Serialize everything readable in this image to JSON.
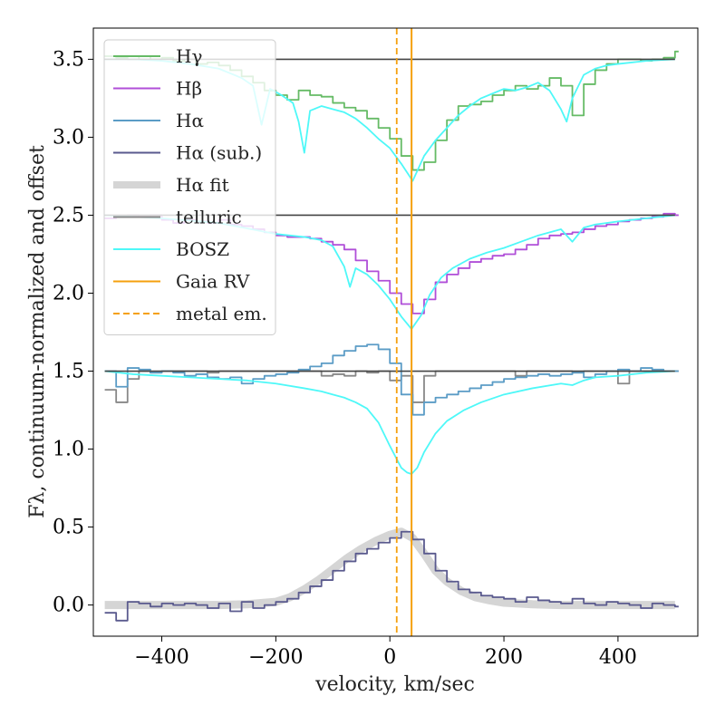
{
  "chart_data": {
    "type": "line",
    "xlabel": "velocity, km/sec",
    "ylabel": "Fλ, continuum-normalized and offset",
    "xlim": [
      -520,
      540
    ],
    "ylim": [
      -0.2,
      3.7
    ],
    "xticks": [
      -400,
      -200,
      0,
      200,
      400
    ],
    "xtick_labels": [
      "−400",
      "−200",
      "0",
      "200",
      "400"
    ],
    "yticks": [
      0.0,
      0.5,
      1.0,
      1.5,
      2.0,
      2.5,
      3.0,
      3.5
    ],
    "ytick_labels": [
      "0.0",
      "0.5",
      "1.0",
      "1.5",
      "2.0",
      "2.5",
      "3.0",
      "3.5"
    ],
    "legend_position": "upper-left",
    "colors": {
      "hgamma": "#66bb66",
      "hbeta": "#b04fd8",
      "halpha": "#5b9cc6",
      "halpha_sub": "#5a5a8e",
      "halpha_fit": "#d5d5d5",
      "telluric": "#888888",
      "bosz": "#4ef8f8",
      "gaia": "#f5a00e",
      "refline": "#444444"
    },
    "legend": [
      {
        "key": "hgamma",
        "label": "Hγ",
        "style": "line"
      },
      {
        "key": "hbeta",
        "label": "Hβ",
        "style": "line"
      },
      {
        "key": "halpha",
        "label": "Hα",
        "style": "line"
      },
      {
        "key": "halpha_sub",
        "label": "Hα (sub.)",
        "style": "line"
      },
      {
        "key": "halpha_fit",
        "label": "Hα fit",
        "style": "thick"
      },
      {
        "key": "telluric",
        "label": "telluric",
        "style": "line"
      },
      {
        "key": "bosz",
        "label": "BOSZ",
        "style": "line"
      },
      {
        "key": "gaia",
        "label": "Gaia RV",
        "style": "line"
      },
      {
        "key": "gaia",
        "label": "metal em.",
        "style": "dashed"
      }
    ],
    "reference_lines": {
      "horizontal_y": [
        3.5,
        2.5,
        1.5
      ],
      "gaia_rv": 38,
      "metal_emission": 12
    },
    "series": [
      {
        "name": "Hγ",
        "key": "hgamma",
        "offset": 3.0,
        "style": "step",
        "x": [
          -500,
          -480,
          -460,
          -440,
          -420,
          -400,
          -380,
          -360,
          -340,
          -320,
          -300,
          -280,
          -260,
          -240,
          -220,
          -200,
          -180,
          -160,
          -140,
          -120,
          -100,
          -80,
          -60,
          -40,
          -20,
          0,
          20,
          40,
          60,
          80,
          100,
          120,
          140,
          160,
          180,
          200,
          220,
          240,
          260,
          280,
          300,
          320,
          340,
          360,
          380,
          400,
          420,
          440,
          460,
          480,
          500
        ],
        "y": [
          3.52,
          3.51,
          3.5,
          3.52,
          3.5,
          3.51,
          3.49,
          3.5,
          3.47,
          3.48,
          3.46,
          3.43,
          3.39,
          3.35,
          3.3,
          3.27,
          3.24,
          3.3,
          3.27,
          3.26,
          3.22,
          3.19,
          3.17,
          3.12,
          3.06,
          2.99,
          2.88,
          2.79,
          2.84,
          2.98,
          3.11,
          3.2,
          3.21,
          3.23,
          3.27,
          3.3,
          3.33,
          3.31,
          3.33,
          3.38,
          3.33,
          3.14,
          3.34,
          3.43,
          3.47,
          3.5,
          3.5,
          3.49,
          3.5,
          3.51,
          3.55
        ]
      },
      {
        "name": "Hβ",
        "key": "hbeta",
        "offset": 2.0,
        "style": "step",
        "x": [
          -500,
          -480,
          -460,
          -440,
          -420,
          -400,
          -380,
          -360,
          -340,
          -320,
          -300,
          -280,
          -260,
          -240,
          -220,
          -200,
          -180,
          -160,
          -140,
          -120,
          -100,
          -80,
          -60,
          -40,
          -20,
          0,
          20,
          40,
          60,
          80,
          100,
          120,
          140,
          160,
          180,
          200,
          220,
          240,
          260,
          280,
          300,
          320,
          340,
          360,
          380,
          400,
          420,
          440,
          460,
          480,
          500
        ],
        "y": [
          2.48,
          2.49,
          2.5,
          2.49,
          2.5,
          2.47,
          2.45,
          2.47,
          2.46,
          2.45,
          2.47,
          2.44,
          2.43,
          2.41,
          2.39,
          2.37,
          2.36,
          2.36,
          2.35,
          2.33,
          2.31,
          2.28,
          2.21,
          2.14,
          2.08,
          2.0,
          1.93,
          1.87,
          1.96,
          2.07,
          2.12,
          2.16,
          2.2,
          2.22,
          2.24,
          2.25,
          2.28,
          2.31,
          2.35,
          2.37,
          2.38,
          2.39,
          2.41,
          2.43,
          2.44,
          2.46,
          2.47,
          2.48,
          2.49,
          2.51,
          2.5
        ]
      },
      {
        "name": "Hα",
        "key": "halpha",
        "offset": 1.0,
        "style": "step",
        "x": [
          -500,
          -480,
          -460,
          -440,
          -420,
          -400,
          -380,
          -360,
          -340,
          -320,
          -300,
          -280,
          -260,
          -240,
          -220,
          -200,
          -180,
          -160,
          -140,
          -120,
          -100,
          -80,
          -60,
          -40,
          -20,
          0,
          20,
          40,
          60,
          80,
          100,
          120,
          140,
          160,
          180,
          200,
          220,
          240,
          260,
          280,
          300,
          320,
          340,
          360,
          380,
          400,
          420,
          440,
          460,
          480,
          500
        ],
        "y": [
          1.5,
          1.4,
          1.52,
          1.51,
          1.49,
          1.5,
          1.49,
          1.47,
          1.48,
          1.46,
          1.45,
          1.46,
          1.42,
          1.45,
          1.47,
          1.48,
          1.49,
          1.51,
          1.53,
          1.55,
          1.6,
          1.63,
          1.66,
          1.67,
          1.64,
          1.55,
          1.35,
          1.22,
          1.3,
          1.33,
          1.35,
          1.37,
          1.39,
          1.41,
          1.43,
          1.45,
          1.46,
          1.47,
          1.48,
          1.47,
          1.48,
          1.49,
          1.46,
          1.48,
          1.5,
          1.51,
          1.5,
          1.52,
          1.51,
          1.5,
          1.5
        ]
      },
      {
        "name": "telluric",
        "key": "telluric",
        "offset": 1.0,
        "style": "step",
        "x": [
          -500,
          -480,
          -460,
          -440,
          -420,
          -400,
          -380,
          -360,
          -340,
          -320,
          -300,
          -280,
          -260,
          -240,
          -220,
          -200,
          -180,
          -160,
          -140,
          -120,
          -100,
          -80,
          -60,
          -40,
          -20,
          0,
          20,
          40,
          60,
          80,
          100,
          120,
          140,
          160,
          180,
          200,
          220,
          240,
          260,
          280,
          300,
          320,
          340,
          360,
          380,
          400,
          420,
          440,
          460,
          480,
          500
        ],
        "y": [
          1.38,
          1.3,
          1.45,
          1.5,
          1.49,
          1.5,
          1.5,
          1.5,
          1.5,
          1.49,
          1.5,
          1.5,
          1.5,
          1.5,
          1.5,
          1.5,
          1.5,
          1.5,
          1.5,
          1.47,
          1.48,
          1.47,
          1.5,
          1.49,
          1.5,
          1.44,
          1.47,
          1.3,
          1.47,
          1.5,
          1.5,
          1.5,
          1.5,
          1.5,
          1.5,
          1.5,
          1.47,
          1.5,
          1.5,
          1.5,
          1.5,
          1.49,
          1.5,
          1.5,
          1.5,
          1.42,
          1.5,
          1.5,
          1.5,
          1.5,
          1.5
        ]
      },
      {
        "name": "Hα (sub.)",
        "key": "halpha_sub",
        "offset": 0.0,
        "style": "step",
        "x": [
          -500,
          -480,
          -460,
          -440,
          -420,
          -400,
          -380,
          -360,
          -340,
          -320,
          -300,
          -280,
          -260,
          -240,
          -220,
          -200,
          -180,
          -160,
          -140,
          -120,
          -100,
          -80,
          -60,
          -40,
          -20,
          0,
          20,
          40,
          60,
          80,
          100,
          120,
          140,
          160,
          180,
          200,
          220,
          240,
          260,
          280,
          300,
          320,
          340,
          360,
          380,
          400,
          420,
          440,
          460,
          480,
          500
        ],
        "y": [
          -0.05,
          -0.1,
          0.02,
          0.01,
          -0.01,
          0.01,
          0.0,
          0.01,
          0.0,
          -0.02,
          0.01,
          -0.04,
          0.02,
          -0.02,
          0.0,
          0.02,
          0.04,
          0.08,
          0.12,
          0.16,
          0.22,
          0.28,
          0.33,
          0.36,
          0.4,
          0.43,
          0.47,
          0.42,
          0.33,
          0.22,
          0.15,
          0.1,
          0.08,
          0.06,
          0.05,
          0.04,
          0.02,
          0.05,
          0.03,
          0.02,
          0.01,
          0.04,
          0.01,
          0.0,
          0.02,
          0.01,
          0.0,
          -0.02,
          0.01,
          0.0,
          -0.01
        ]
      },
      {
        "name": "Hα fit",
        "key": "halpha_fit",
        "offset": 0.0,
        "style": "thick",
        "x": [
          -500,
          -450,
          -400,
          -350,
          -300,
          -250,
          -200,
          -175,
          -150,
          -125,
          -100,
          -75,
          -50,
          -25,
          0,
          20,
          40,
          60,
          80,
          100,
          125,
          150,
          175,
          200,
          250,
          300,
          350,
          400,
          450,
          500
        ],
        "y": [
          0.0,
          0.0,
          0.0,
          0.0,
          0.0,
          0.005,
          0.02,
          0.05,
          0.1,
          0.16,
          0.23,
          0.3,
          0.36,
          0.41,
          0.45,
          0.47,
          0.43,
          0.33,
          0.22,
          0.15,
          0.09,
          0.05,
          0.03,
          0.015,
          0.005,
          0.0,
          0.0,
          0.0,
          0.0,
          0.0
        ]
      },
      {
        "name": "BOSZ (Hγ)",
        "key": "bosz",
        "offset": 3.0,
        "style": "line",
        "x": [
          -500,
          -450,
          -400,
          -350,
          -300,
          -280,
          -260,
          -240,
          -225,
          -210,
          -190,
          -170,
          -160,
          -150,
          -140,
          -120,
          -100,
          -80,
          -60,
          -40,
          -20,
          0,
          20,
          40,
          60,
          80,
          100,
          120,
          140,
          160,
          180,
          200,
          220,
          240,
          260,
          280,
          300,
          310,
          320,
          340,
          360,
          380,
          400,
          450,
          500
        ],
        "y": [
          3.5,
          3.5,
          3.49,
          3.47,
          3.44,
          3.41,
          3.38,
          3.33,
          3.08,
          3.31,
          3.27,
          3.22,
          3.1,
          2.9,
          3.17,
          3.2,
          3.18,
          3.16,
          3.12,
          3.06,
          2.99,
          2.93,
          2.83,
          2.72,
          2.88,
          2.98,
          3.06,
          3.14,
          3.2,
          3.25,
          3.28,
          3.31,
          3.3,
          3.32,
          3.35,
          3.3,
          3.18,
          3.1,
          3.25,
          3.4,
          3.44,
          3.46,
          3.47,
          3.49,
          3.5
        ]
      },
      {
        "name": "BOSZ (Hβ)",
        "key": "bosz",
        "offset": 2.0,
        "style": "line",
        "x": [
          -500,
          -400,
          -300,
          -200,
          -150,
          -120,
          -100,
          -80,
          -70,
          -60,
          -40,
          -20,
          0,
          20,
          38,
          55,
          70,
          90,
          110,
          140,
          170,
          200,
          230,
          260,
          300,
          320,
          340,
          360,
          400,
          450,
          500
        ],
        "y": [
          2.5,
          2.48,
          2.45,
          2.38,
          2.36,
          2.34,
          2.3,
          2.17,
          2.04,
          2.16,
          2.12,
          2.05,
          1.96,
          1.85,
          1.77,
          1.86,
          1.99,
          2.1,
          2.16,
          2.22,
          2.26,
          2.29,
          2.33,
          2.37,
          2.41,
          2.33,
          2.42,
          2.44,
          2.46,
          2.48,
          2.5
        ]
      },
      {
        "name": "BOSZ (Hα)",
        "key": "bosz",
        "offset": 1.0,
        "style": "line",
        "x": [
          -500,
          -450,
          -400,
          -350,
          -300,
          -250,
          -200,
          -150,
          -120,
          -100,
          -80,
          -60,
          -40,
          -20,
          0,
          20,
          30,
          38,
          48,
          60,
          80,
          100,
          130,
          160,
          200,
          250,
          300,
          320,
          340,
          360,
          400,
          450,
          500
        ],
        "y": [
          1.5,
          1.48,
          1.47,
          1.46,
          1.45,
          1.44,
          1.42,
          1.39,
          1.37,
          1.35,
          1.33,
          1.3,
          1.26,
          1.17,
          1.02,
          0.88,
          0.85,
          0.84,
          0.88,
          0.98,
          1.1,
          1.18,
          1.25,
          1.3,
          1.35,
          1.39,
          1.42,
          1.41,
          1.44,
          1.46,
          1.47,
          1.49,
          1.5
        ]
      }
    ]
  }
}
